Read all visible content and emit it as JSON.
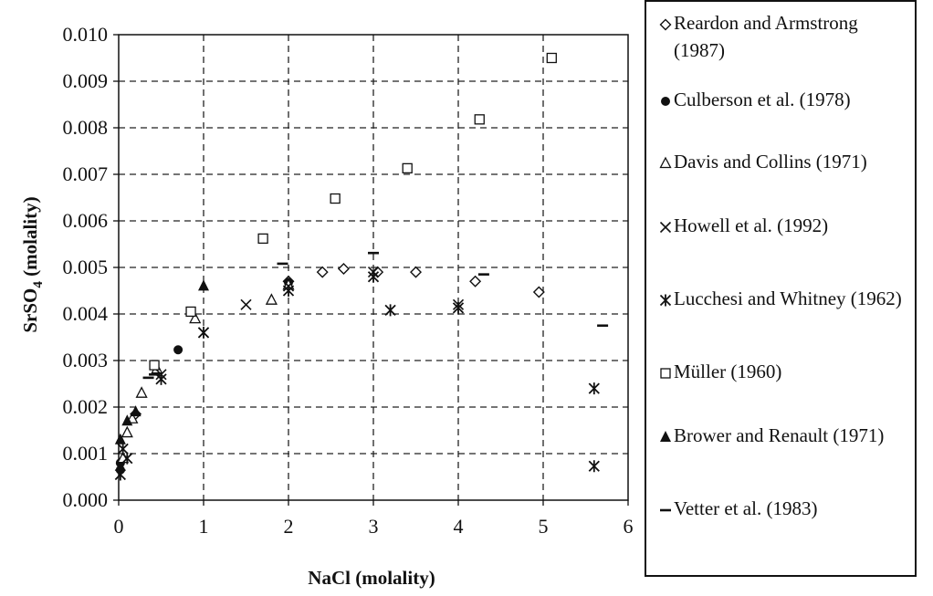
{
  "chart_data": {
    "type": "scatter",
    "xlabel": "NaCl (molality)",
    "ylabel_parts": [
      "SrSO",
      "4",
      " (molality)"
    ],
    "xlim": [
      0,
      6
    ],
    "ylim": [
      0,
      0.01
    ],
    "xticks": [
      "0",
      "1",
      "2",
      "3",
      "4",
      "5",
      "6"
    ],
    "yticks": [
      "0.000",
      "0.001",
      "0.002",
      "0.003",
      "0.004",
      "0.005",
      "0.006",
      "0.007",
      "0.008",
      "0.009",
      "0.010"
    ],
    "grid": true,
    "legend_position": "right",
    "series": [
      {
        "name": "Reardon and Armstrong (1987)",
        "marker": "diamond",
        "points": [
          [
            0.2,
            0.00185
          ],
          [
            2.0,
            0.0047
          ],
          [
            2.4,
            0.0049
          ],
          [
            2.65,
            0.00497
          ],
          [
            3.05,
            0.0049
          ],
          [
            3.5,
            0.0049
          ],
          [
            4.2,
            0.0047
          ],
          [
            4.95,
            0.00447
          ]
        ]
      },
      {
        "name": "Culberson et al. (1978)",
        "marker": "circle",
        "points": [
          [
            0.02,
            0.00065
          ],
          [
            0.02,
            0.0008
          ],
          [
            0.7,
            0.00323
          ],
          [
            2.0,
            0.00468
          ]
        ]
      },
      {
        "name": "Davis and Collins (1971)",
        "marker": "triangle-open",
        "points": [
          [
            0.05,
            0.0009
          ],
          [
            0.1,
            0.00145
          ],
          [
            0.16,
            0.00175
          ],
          [
            0.27,
            0.0023
          ],
          [
            0.45,
            0.00282
          ],
          [
            0.9,
            0.0039
          ],
          [
            1.8,
            0.0043
          ],
          [
            2.0,
            0.00462
          ]
        ]
      },
      {
        "name": "Howell et al. (1992)",
        "marker": "x",
        "points": [
          [
            0.5,
            0.0027
          ],
          [
            1.0,
            0.0036
          ],
          [
            1.5,
            0.0042
          ],
          [
            2.0,
            0.0046
          ],
          [
            3.0,
            0.0049
          ],
          [
            4.0,
            0.0042
          ]
        ]
      },
      {
        "name": "Lucchesi and Whitney (1962)",
        "marker": "asterisk",
        "points": [
          [
            0.02,
            0.00055
          ],
          [
            0.05,
            0.0011
          ],
          [
            0.1,
            0.0009
          ],
          [
            0.5,
            0.0026
          ],
          [
            1.0,
            0.0036
          ],
          [
            2.0,
            0.0045
          ],
          [
            3.0,
            0.0048
          ],
          [
            3.2,
            0.00408
          ],
          [
            4.0,
            0.00413
          ],
          [
            5.6,
            0.0024
          ],
          [
            5.6,
            0.00073
          ]
        ]
      },
      {
        "name": "Müller (1960)",
        "marker": "square-open",
        "points": [
          [
            0.42,
            0.0029
          ],
          [
            0.85,
            0.00405
          ],
          [
            1.7,
            0.00562
          ],
          [
            2.55,
            0.00648
          ],
          [
            3.4,
            0.00713
          ],
          [
            4.25,
            0.00818
          ],
          [
            5.1,
            0.0095
          ]
        ]
      },
      {
        "name": "Brower and Renault (1971)",
        "marker": "triangle-filled",
        "points": [
          [
            0.02,
            0.0013
          ],
          [
            0.1,
            0.0017
          ],
          [
            0.2,
            0.0019
          ],
          [
            1.0,
            0.0046
          ]
        ]
      },
      {
        "name": "Vetter et al. (1983)",
        "marker": "dash",
        "points": [
          [
            0.35,
            0.00263
          ],
          [
            0.42,
            0.0027
          ],
          [
            1.93,
            0.00508
          ],
          [
            3.0,
            0.00531
          ],
          [
            4.3,
            0.00485
          ],
          [
            5.7,
            0.00375
          ]
        ]
      }
    ]
  }
}
